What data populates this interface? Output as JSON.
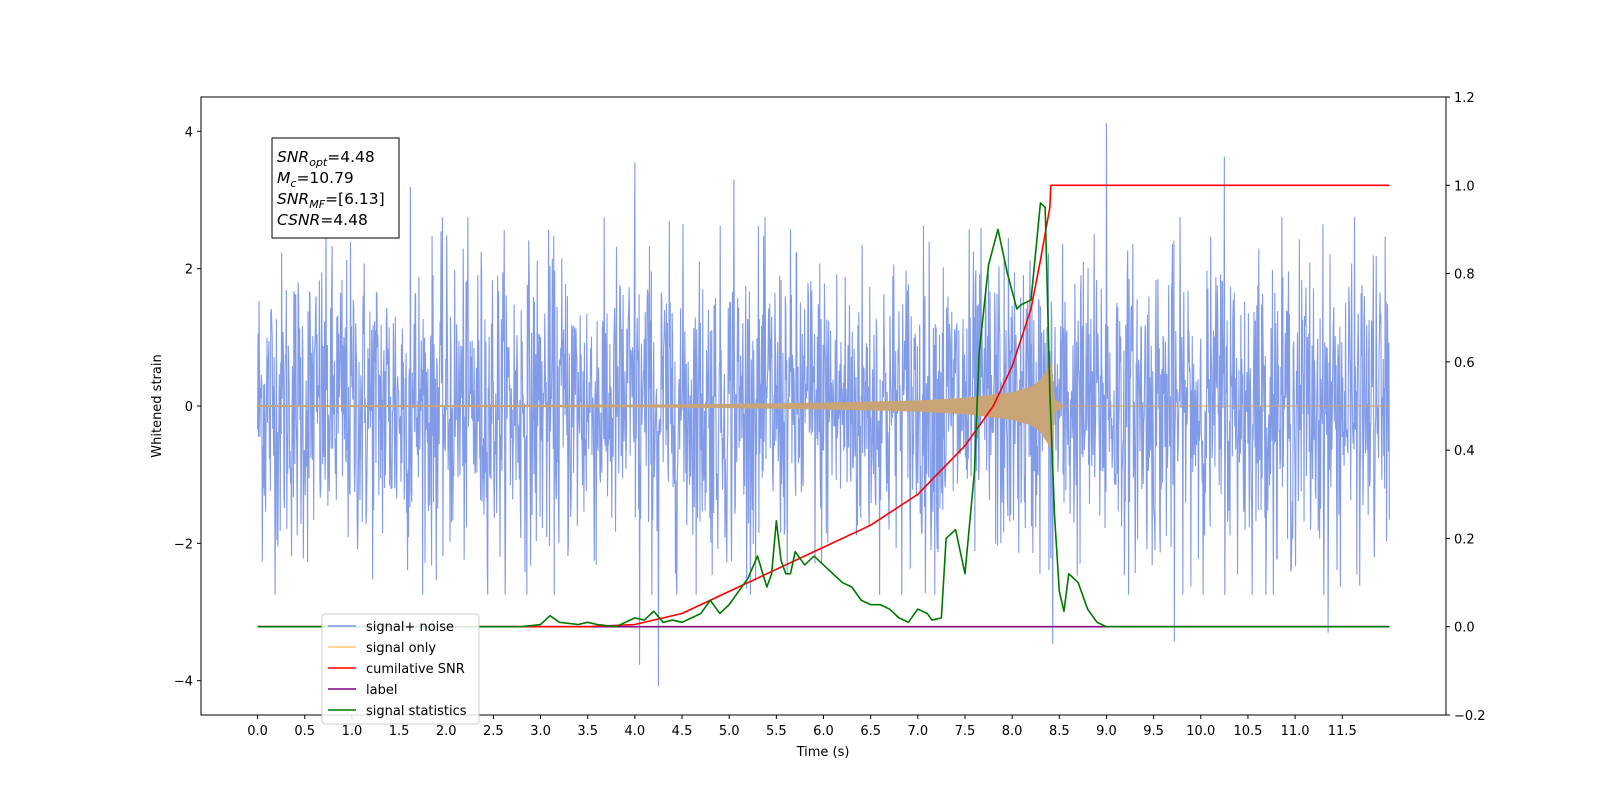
{
  "chart_data": {
    "type": "line",
    "title": "",
    "xlabel": "Time (s)",
    "ylabel": "Whitened strain",
    "xlim": [
      -0.6,
      12.6
    ],
    "ylim": [
      -4.5,
      4.5
    ],
    "y2lim": [
      -0.2,
      1.2
    ],
    "grid": false,
    "legend_position": "lower-left",
    "x_ticks": [
      "0.0",
      "0.5",
      "1.0",
      "1.5",
      "2.0",
      "2.5",
      "3.0",
      "3.5",
      "4.0",
      "4.5",
      "5.0",
      "5.5",
      "6.0",
      "6.5",
      "7.0",
      "7.5",
      "8.0",
      "8.5",
      "9.0",
      "9.5",
      "10.0",
      "10.5",
      "11.0",
      "11.5"
    ],
    "y_ticks": [
      "4",
      "2",
      "0",
      "−2",
      "−4"
    ],
    "y2_ticks": [
      "1.2",
      "1.0",
      "0.8",
      "0.6",
      "0.4",
      "0.2",
      "0.0",
      "−0.2"
    ],
    "info_box": [
      {
        "base": "SNR",
        "sub": "opt",
        "value": "=4.48"
      },
      {
        "base": "M",
        "sub": "c",
        "value": "=10.79"
      },
      {
        "base": "SNR",
        "sub": "MF",
        "value": "=[6.13]"
      },
      {
        "base": "CSNR",
        "sub": "",
        "value": "=4.48"
      }
    ],
    "series": [
      {
        "name": "signal+ noise",
        "color": "#7b96e8",
        "axis": "left",
        "description": "whitened strain sampled over 0–12 s, noise mostly within ±2.8 with spikes near 4.1 at 9.0 s and −4.1 at 4.25 s",
        "x_range": [
          0.0,
          12.0
        ],
        "outliers": [
          [
            9.0,
            4.12
          ],
          [
            10.25,
            3.63
          ],
          [
            4.0,
            3.55
          ],
          [
            4.25,
            -4.08
          ],
          [
            4.05,
            -3.77
          ],
          [
            8.43,
            -3.47
          ],
          [
            9.72,
            -3.43
          ],
          [
            11.35,
            -3.3
          ],
          [
            5.05,
            3.3
          ],
          [
            1.62,
            3.19
          ]
        ]
      },
      {
        "name": "signal only",
        "color": "#c8a477",
        "axis": "left",
        "description": "chirp waveform, amplitude growing until merger at 8.4 s",
        "envelope_x": [
          0.0,
          1.0,
          2.0,
          3.0,
          4.0,
          5.0,
          6.0,
          7.0,
          7.5,
          8.0,
          8.2,
          8.3,
          8.38,
          8.42,
          8.45,
          8.55,
          12.0
        ],
        "envelope_amp": [
          0.01,
          0.012,
          0.014,
          0.016,
          0.02,
          0.03,
          0.05,
          0.08,
          0.12,
          0.2,
          0.28,
          0.38,
          0.55,
          0.65,
          0.1,
          0.0,
          0.0
        ]
      },
      {
        "name": "cumilative SNR",
        "color": "#ff0000",
        "axis": "right",
        "x": [
          0.0,
          3.5,
          4.0,
          4.5,
          5.0,
          5.5,
          6.0,
          6.5,
          7.0,
          7.5,
          7.8,
          8.0,
          8.2,
          8.3,
          8.4,
          8.41,
          12.0
        ],
        "y": [
          0.0,
          0.0,
          0.005,
          0.03,
          0.08,
          0.13,
          0.18,
          0.23,
          0.3,
          0.41,
          0.5,
          0.59,
          0.72,
          0.83,
          0.95,
          1.0,
          1.0
        ]
      },
      {
        "name": "label",
        "color": "#800080",
        "axis": "right",
        "x": [
          0.0,
          12.0
        ],
        "y": [
          0.0,
          0.0
        ]
      },
      {
        "name": "signal statistics",
        "color": "#007800",
        "axis": "right",
        "x": [
          0.0,
          2.8,
          3.0,
          3.1,
          3.2,
          3.4,
          3.5,
          3.6,
          3.8,
          4.0,
          4.1,
          4.2,
          4.3,
          4.4,
          4.5,
          4.7,
          4.8,
          4.9,
          5.0,
          5.1,
          5.2,
          5.3,
          5.4,
          5.45,
          5.5,
          5.55,
          5.6,
          5.65,
          5.7,
          5.8,
          5.9,
          6.0,
          6.1,
          6.2,
          6.3,
          6.4,
          6.5,
          6.6,
          6.7,
          6.8,
          6.9,
          7.0,
          7.1,
          7.15,
          7.25,
          7.3,
          7.4,
          7.5,
          7.6,
          7.65,
          7.75,
          7.85,
          7.95,
          8.05,
          8.1,
          8.2,
          8.3,
          8.35,
          8.4,
          8.45,
          8.5,
          8.55,
          8.6,
          8.7,
          8.8,
          8.9,
          9.0,
          9.1,
          9.2,
          10.8,
          11.0,
          12.0
        ],
        "y": [
          0.0,
          0.0,
          0.005,
          0.025,
          0.01,
          0.005,
          0.01,
          0.005,
          0.0,
          0.02,
          0.015,
          0.035,
          0.01,
          0.015,
          0.01,
          0.03,
          0.06,
          0.03,
          0.05,
          0.08,
          0.11,
          0.16,
          0.09,
          0.12,
          0.24,
          0.15,
          0.12,
          0.12,
          0.17,
          0.14,
          0.16,
          0.14,
          0.12,
          0.1,
          0.09,
          0.06,
          0.05,
          0.05,
          0.04,
          0.02,
          0.01,
          0.04,
          0.03,
          0.015,
          0.02,
          0.2,
          0.22,
          0.12,
          0.35,
          0.62,
          0.82,
          0.9,
          0.8,
          0.72,
          0.73,
          0.74,
          0.96,
          0.95,
          0.53,
          0.25,
          0.08,
          0.035,
          0.12,
          0.1,
          0.04,
          0.01,
          0.0,
          0.0,
          0.0,
          0.0,
          0.0,
          0.0
        ]
      }
    ],
    "legend": [
      {
        "label": "signal+ noise",
        "color": "#7b96e8"
      },
      {
        "label": "signal only",
        "color": "#ffc870"
      },
      {
        "label": "cumilative SNR",
        "color": "#ff0000"
      },
      {
        "label": "label",
        "color": "#800080"
      },
      {
        "label": "signal statistics",
        "color": "#007800"
      }
    ]
  }
}
